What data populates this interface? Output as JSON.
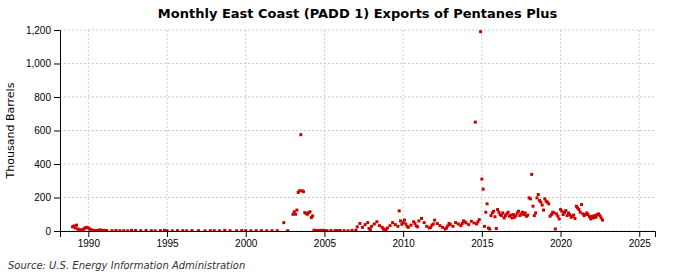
{
  "chart_data": {
    "type": "scatter",
    "title": "Monthly East Coast (PADD 1) Exports of Pentanes Plus",
    "y_label": "Thousand Barrels",
    "annotations": [
      "Source: U.S. Energy Information Administration"
    ],
    "color": "#cc0000",
    "marker": "square",
    "grid": true,
    "xlim": [
      1988.2,
      2026.0
    ],
    "ylim": [
      0,
      1200
    ],
    "xticks": [
      1990,
      1995,
      2000,
      2005,
      2010,
      2015,
      2020,
      2025
    ],
    "yticks": [
      0,
      200,
      400,
      600,
      800,
      {
        "value": 1000,
        "label": "1,000"
      },
      {
        "value": 1200,
        "label": "1,200"
      }
    ],
    "x": [
      1989.0,
      1989.083,
      1989.167,
      1989.25,
      1989.333,
      1989.417,
      1989.5,
      1989.583,
      1989.667,
      1989.75,
      1989.833,
      1989.917,
      1990.0,
      1990.083,
      1990.167,
      1990.25,
      1990.333,
      1990.417,
      1990.5,
      1990.583,
      1990.667,
      1990.75,
      1990.833,
      1990.917,
      1991.0,
      1991.167,
      1991.5,
      1991.75,
      1992.0,
      1992.25,
      1992.5,
      1992.75,
      1993.0,
      1993.333,
      1993.667,
      1994.0,
      1994.25,
      1994.583,
      1994.833,
      1995.0,
      1995.333,
      1995.667,
      1996.0,
      1996.25,
      1996.583,
      1997.0,
      1997.417,
      1997.75,
      1998.0,
      1998.333,
      1998.667,
      1999.0,
      1999.417,
      1999.75,
      2000.0,
      2000.333,
      2000.667,
      2001.0,
      2001.333,
      2001.667,
      2002.0,
      2002.417,
      2002.667,
      2003.0,
      2003.083,
      2003.167,
      2003.25,
      2003.333,
      2003.417,
      2003.5,
      2003.583,
      2003.667,
      2003.75,
      2003.833,
      2003.917,
      2004.0,
      2004.083,
      2004.167,
      2004.25,
      2004.333,
      2004.417,
      2004.5,
      2004.583,
      2004.667,
      2004.75,
      2004.833,
      2004.917,
      2005.0,
      2005.167,
      2005.417,
      2005.667,
      2005.833,
      2006.0,
      2006.25,
      2006.5,
      2006.75,
      2007.0,
      2007.083,
      2007.25,
      2007.417,
      2007.583,
      2007.75,
      2007.833,
      2007.917,
      2008.0,
      2008.167,
      2008.333,
      2008.5,
      2008.667,
      2008.75,
      2008.833,
      2008.917,
      2009.0,
      2009.167,
      2009.333,
      2009.5,
      2009.667,
      2009.75,
      2009.833,
      2009.917,
      2010.0,
      2010.083,
      2010.167,
      2010.25,
      2010.333,
      2010.5,
      2010.667,
      2010.75,
      2010.833,
      2010.917,
      2011.0,
      2011.167,
      2011.333,
      2011.5,
      2011.667,
      2011.75,
      2011.833,
      2011.917,
      2012.0,
      2012.167,
      2012.333,
      2012.5,
      2012.667,
      2012.75,
      2012.833,
      2012.917,
      2013.0,
      2013.167,
      2013.333,
      2013.5,
      2013.667,
      2013.75,
      2013.833,
      2013.917,
      2014.0,
      2014.167,
      2014.333,
      2014.5,
      2014.583,
      2014.667,
      2014.75,
      2014.833,
      2014.917,
      2015.0,
      2015.083,
      2015.167,
      2015.25,
      2015.333,
      2015.417,
      2015.5,
      2015.583,
      2015.667,
      2015.75,
      2015.833,
      2015.917,
      2016.0,
      2016.083,
      2016.167,
      2016.25,
      2016.333,
      2016.417,
      2016.5,
      2016.583,
      2016.667,
      2016.75,
      2016.833,
      2016.917,
      2017.0,
      2017.083,
      2017.167,
      2017.25,
      2017.333,
      2017.417,
      2017.5,
      2017.583,
      2017.667,
      2017.75,
      2017.833,
      2017.917,
      2018.0,
      2018.083,
      2018.167,
      2018.25,
      2018.333,
      2018.417,
      2018.5,
      2018.583,
      2018.667,
      2018.75,
      2018.833,
      2018.917,
      2019.0,
      2019.083,
      2019.167,
      2019.25,
      2019.333,
      2019.417,
      2019.5,
      2019.583,
      2019.667,
      2019.75,
      2019.833,
      2019.917,
      2020.0,
      2020.083,
      2020.167,
      2020.25,
      2020.333,
      2020.417,
      2020.5,
      2020.583,
      2020.667,
      2020.75,
      2020.833,
      2020.917,
      2021.0,
      2021.083,
      2021.167,
      2021.25,
      2021.333,
      2021.417,
      2021.5,
      2021.583,
      2021.667,
      2021.75,
      2021.833,
      2021.917,
      2022.0,
      2022.083,
      2022.167,
      2022.25,
      2022.333,
      2022.417,
      2022.5,
      2022.583,
      2022.667
    ],
    "values": [
      25,
      30,
      18,
      35,
      12,
      8,
      5,
      6,
      10,
      14,
      20,
      22,
      18,
      12,
      8,
      5,
      3,
      2,
      1,
      3,
      5,
      6,
      4,
      3,
      4,
      3,
      2,
      3,
      2,
      2,
      1,
      4,
      3,
      2,
      3,
      2,
      1,
      2,
      4,
      2,
      1,
      2,
      2,
      1,
      3,
      2,
      1,
      2,
      2,
      1,
      4,
      2,
      1,
      3,
      2,
      1,
      2,
      2,
      1,
      2,
      2,
      50,
      2,
      100,
      115,
      100,
      125,
      230,
      240,
      575,
      240,
      235,
      110,
      105,
      100,
      110,
      115,
      80,
      90,
      5,
      3,
      2,
      1,
      2,
      4,
      3,
      4,
      3,
      2,
      3,
      2,
      2,
      3,
      2,
      1,
      4,
      5,
      25,
      45,
      22,
      38,
      50,
      15,
      8,
      28,
      42,
      55,
      32,
      22,
      12,
      8,
      5,
      18,
      32,
      50,
      38,
      28,
      120,
      60,
      40,
      50,
      65,
      42,
      28,
      22,
      35,
      55,
      45,
      30,
      25,
      60,
      75,
      50,
      28,
      18,
      22,
      35,
      42,
      65,
      45,
      32,
      22,
      12,
      18,
      30,
      45,
      38,
      28,
      50,
      42,
      32,
      45,
      60,
      55,
      48,
      38,
      58,
      48,
      650,
      42,
      55,
      68,
      1190,
      310,
      250,
      28,
      112,
      162,
      18,
      12,
      92,
      108,
      118,
      85,
      15,
      128,
      112,
      98,
      92,
      108,
      78,
      92,
      102,
      112,
      88,
      95,
      78,
      98,
      82,
      92,
      108,
      118,
      92,
      102,
      112,
      98,
      108,
      88,
      95,
      198,
      192,
      338,
      148,
      92,
      108,
      198,
      218,
      182,
      172,
      155,
      125,
      192,
      178,
      172,
      162,
      88,
      98,
      112,
      108,
      12,
      102,
      88,
      72,
      128,
      118,
      98,
      112,
      122,
      92,
      108,
      98,
      82,
      88,
      95,
      75,
      148,
      138,
      128,
      112,
      158,
      102,
      92,
      98,
      108,
      98,
      85,
      72,
      88,
      78,
      92,
      82,
      98,
      102,
      92,
      78,
      65
    ]
  }
}
